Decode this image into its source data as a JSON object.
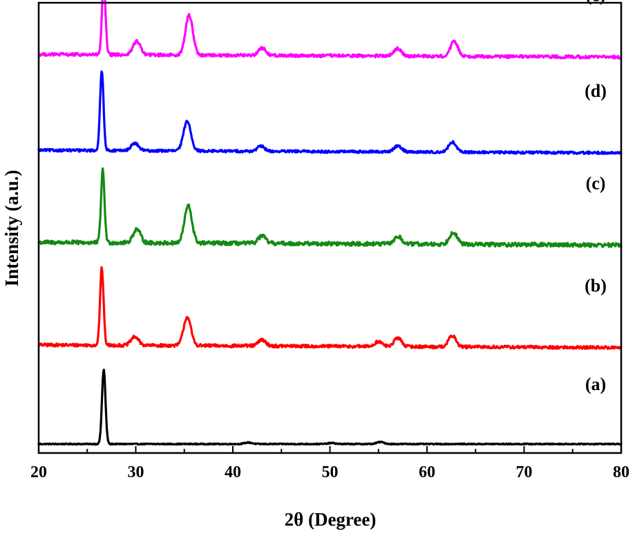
{
  "chart_data": {
    "type": "line",
    "title": "",
    "xlabel": "2θ (Degree)",
    "ylabel": "Intensity (a.u.)",
    "xlim": [
      20,
      80
    ],
    "x_ticks": [
      "20",
      "30",
      "40",
      "50",
      "60",
      "70",
      "80"
    ],
    "y_ticks_visible": false,
    "grid": false,
    "legend": "none; curves labelled at right",
    "series": [
      {
        "name": "(a)",
        "color": "#000000",
        "baseline": 0.0,
        "noise": 0.004,
        "peaks": [
          {
            "x": 26.7,
            "height": 0.3
          },
          {
            "x": 41.6,
            "height": 0.006
          },
          {
            "x": 50.2,
            "height": 0.004
          },
          {
            "x": 55.2,
            "height": 0.008
          }
        ]
      },
      {
        "name": "(b)",
        "color": "#ff0000",
        "baseline": 0.398,
        "noise": 0.012,
        "peaks": [
          {
            "x": 26.5,
            "height": 0.31
          },
          {
            "x": 29.9,
            "height": 0.035
          },
          {
            "x": 35.3,
            "height": 0.115
          },
          {
            "x": 43.0,
            "height": 0.025
          },
          {
            "x": 55.0,
            "height": 0.02
          },
          {
            "x": 57.0,
            "height": 0.035
          },
          {
            "x": 62.6,
            "height": 0.045
          }
        ]
      },
      {
        "name": "(c)",
        "color": "#138a13",
        "baseline": 0.81,
        "noise": 0.016,
        "peaks": [
          {
            "x": 26.6,
            "height": 0.29
          },
          {
            "x": 30.1,
            "height": 0.055
          },
          {
            "x": 35.4,
            "height": 0.15
          },
          {
            "x": 43.0,
            "height": 0.03
          },
          {
            "x": 57.0,
            "height": 0.03
          },
          {
            "x": 62.7,
            "height": 0.05
          }
        ]
      },
      {
        "name": "(d)",
        "color": "#0000ff",
        "baseline": 1.18,
        "noise": 0.01,
        "peaks": [
          {
            "x": 26.5,
            "height": 0.32
          },
          {
            "x": 29.9,
            "height": 0.03
          },
          {
            "x": 35.3,
            "height": 0.12
          },
          {
            "x": 42.9,
            "height": 0.02
          },
          {
            "x": 57.0,
            "height": 0.025
          },
          {
            "x": 62.6,
            "height": 0.04
          }
        ]
      },
      {
        "name": "(e)",
        "color": "#ff00ff",
        "baseline": 1.565,
        "noise": 0.012,
        "peaks": [
          {
            "x": 26.7,
            "height": 0.29
          },
          {
            "x": 30.1,
            "height": 0.055
          },
          {
            "x": 35.5,
            "height": 0.16
          },
          {
            "x": 43.0,
            "height": 0.03
          },
          {
            "x": 57.0,
            "height": 0.03
          },
          {
            "x": 62.8,
            "height": 0.06
          }
        ]
      }
    ]
  }
}
